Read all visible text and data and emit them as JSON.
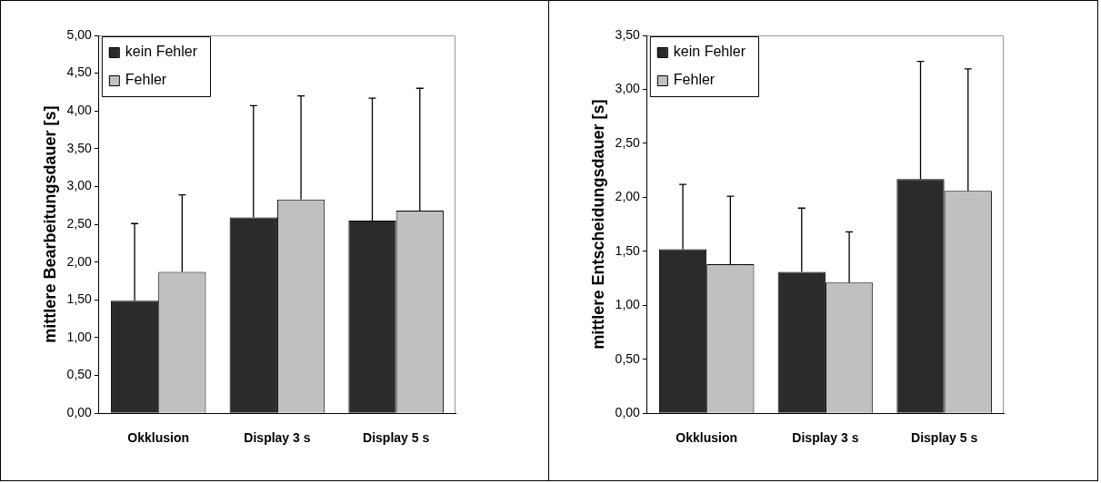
{
  "chart_data": [
    {
      "type": "bar",
      "categories": [
        "Okklusion",
        "Display 3 s",
        "Display 5 s"
      ],
      "ylabel": "mittlere Bearbeitungsdauer [s]",
      "series": [
        {
          "name": "kein Fehler",
          "color": "#2b2b2b",
          "values": [
            1.49,
            2.59,
            2.55
          ],
          "errors": [
            [
              1.49,
              2.51
            ],
            [
              2.59,
              4.07
            ],
            [
              2.55,
              4.17
            ]
          ]
        },
        {
          "name": "Fehler",
          "color": "#c0c0c0",
          "values": [
            1.87,
            2.83,
            2.68
          ],
          "errors": [
            [
              1.87,
              2.89
            ],
            [
              2.83,
              4.2
            ],
            [
              2.68,
              4.3
            ]
          ]
        }
      ],
      "ylim": [
        0,
        5
      ],
      "yticks": [
        {
          "value": 0,
          "label": "0,00"
        },
        {
          "value": 0.5,
          "label": "0,50"
        },
        {
          "value": 1,
          "label": "1,00"
        },
        {
          "value": 1.5,
          "label": "1,50"
        },
        {
          "value": 2,
          "label": "2,00"
        },
        {
          "value": 2.5,
          "label": "2,50"
        },
        {
          "value": 3,
          "label": "3,00"
        },
        {
          "value": 3.5,
          "label": "3,50"
        },
        {
          "value": 4,
          "label": "4,00"
        },
        {
          "value": 4.5,
          "label": "4,50"
        },
        {
          "value": 5,
          "label": "5,00"
        }
      ],
      "grid": false,
      "legend": "top left"
    },
    {
      "type": "bar",
      "categories": [
        "Okklusion",
        "Display 3 s",
        "Display 5 s"
      ],
      "ylabel": "mittlere Entscheidungsdauer [s]",
      "series": [
        {
          "name": "kein Fehler",
          "color": "#2b2b2b",
          "values": [
            1.52,
            1.31,
            2.17
          ],
          "errors": [
            [
              1.52,
              2.12
            ],
            [
              1.31,
              1.9
            ],
            [
              2.17,
              3.26
            ]
          ]
        },
        {
          "name": "Fehler",
          "color": "#c0c0c0",
          "values": [
            1.38,
            1.21,
            2.06
          ],
          "errors": [
            [
              1.38,
              2.01
            ],
            [
              1.21,
              1.68
            ],
            [
              2.06,
              3.19
            ]
          ]
        }
      ],
      "ylim": [
        0,
        3.5
      ],
      "yticks": [
        {
          "value": 0,
          "label": "0,00"
        },
        {
          "value": 0.5,
          "label": "0,50"
        },
        {
          "value": 1,
          "label": "1,00"
        },
        {
          "value": 1.5,
          "label": "1,50"
        },
        {
          "value": 2,
          "label": "2,00"
        },
        {
          "value": 2.5,
          "label": "2,50"
        },
        {
          "value": 3,
          "label": "3,00"
        },
        {
          "value": 3.5,
          "label": "3,50"
        }
      ],
      "grid": false,
      "legend": "top left"
    }
  ]
}
